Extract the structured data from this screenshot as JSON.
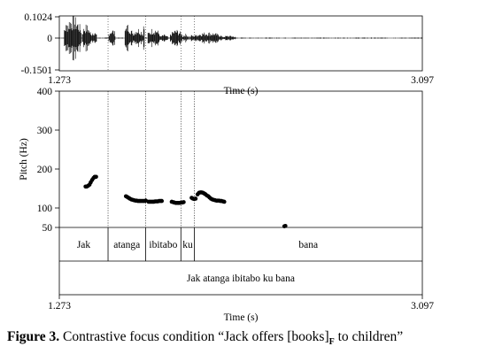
{
  "waveform": {
    "y_max_label": "0.1024",
    "y_zero_label": "0",
    "y_min_label": "-0.1501",
    "x_start_label": "1.273",
    "x_end_label": "3.097",
    "xlabel": "Time (s)"
  },
  "chart_data": {
    "type": "scatter",
    "ylabel": "Pitch (Hz)",
    "xlabel": "Time (s)",
    "xlim": [
      1.273,
      3.097
    ],
    "ylim": [
      50,
      400
    ],
    "y_ticks": [
      50,
      100,
      200,
      300,
      400
    ],
    "x_tick_labels": [
      "1.273",
      "3.097"
    ],
    "grid": false,
    "series": [
      {
        "values": [
          [
            1.4048,
            155
          ],
          [
            1.4108,
            155
          ],
          [
            1.4178,
            157
          ],
          [
            1.4248,
            160
          ],
          [
            1.4308,
            166
          ],
          [
            1.4378,
            172
          ],
          [
            1.4448,
            177
          ],
          [
            1.4508,
            180
          ],
          [
            1.4578,
            180
          ],
          [
            1.6078,
            130
          ],
          [
            1.6148,
            128
          ],
          [
            1.6208,
            126
          ],
          [
            1.6278,
            124
          ],
          [
            1.6348,
            122
          ],
          [
            1.6408,
            121
          ],
          [
            1.6478,
            120
          ],
          [
            1.6548,
            119
          ],
          [
            1.6608,
            119
          ],
          [
            1.6678,
            118
          ],
          [
            1.6748,
            118
          ],
          [
            1.6808,
            118
          ],
          [
            1.6878,
            118
          ],
          [
            1.6948,
            118
          ],
          [
            1.7008,
            118
          ],
          [
            1.7078,
            119
          ],
          [
            1.7218,
            116
          ],
          [
            1.7278,
            116
          ],
          [
            1.7348,
            116
          ],
          [
            1.7418,
            116
          ],
          [
            1.7478,
            116
          ],
          [
            1.7548,
            117
          ],
          [
            1.7618,
            117
          ],
          [
            1.7678,
            117
          ],
          [
            1.7748,
            118
          ],
          [
            1.7818,
            118
          ],
          [
            1.7878,
            118
          ],
          [
            1.8378,
            116
          ],
          [
            1.8448,
            115
          ],
          [
            1.8508,
            114
          ],
          [
            1.8578,
            113
          ],
          [
            1.8648,
            113
          ],
          [
            1.8708,
            113
          ],
          [
            1.8778,
            113
          ],
          [
            1.8848,
            114
          ],
          [
            1.8908,
            114
          ],
          [
            1.8978,
            115
          ],
          [
            1.9378,
            126
          ],
          [
            1.9448,
            124
          ],
          [
            1.9508,
            123
          ],
          [
            1.9578,
            124
          ],
          [
            1.9678,
            135
          ],
          [
            1.9748,
            139
          ],
          [
            1.9818,
            140
          ],
          [
            1.9878,
            140
          ],
          [
            1.9948,
            139
          ],
          [
            2.0018,
            137
          ],
          [
            2.0078,
            135
          ],
          [
            2.0148,
            132
          ],
          [
            2.0218,
            130
          ],
          [
            2.0278,
            127
          ],
          [
            2.0348,
            124
          ],
          [
            2.0418,
            122
          ],
          [
            2.0478,
            121
          ],
          [
            2.0548,
            120
          ],
          [
            2.0618,
            119
          ],
          [
            2.0678,
            119
          ],
          [
            2.0748,
            119
          ],
          [
            2.0818,
            118
          ],
          [
            2.0878,
            118
          ],
          [
            2.0948,
            117
          ],
          [
            2.1018,
            116
          ],
          [
            2.4038,
            53
          ],
          [
            2.4088,
            54
          ]
        ]
      }
    ],
    "boundaries": [
      1.5178,
      1.7068,
      1.8838,
      1.9518
    ],
    "word_tier": [
      "Jak",
      "atanga",
      "ibitabo",
      "ku",
      "bana"
    ],
    "sentence_tier": [
      "Jak atanga ibitabo ku bana"
    ]
  },
  "caption": {
    "figure_label": "Figure 3.",
    "text_before": " Contrastive focus condition “Jack offers [books]",
    "subscript": "F",
    "text_after": " to children”"
  }
}
